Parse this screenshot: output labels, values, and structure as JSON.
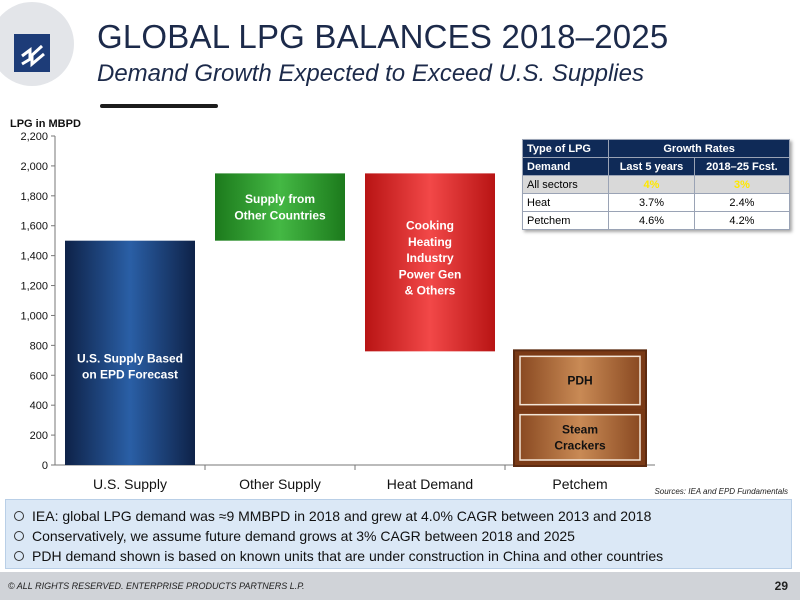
{
  "slide": {
    "title": "GLOBAL LPG BALANCES 2018–2025",
    "subtitle": "Demand Growth Expected to Exceed U.S. Supplies",
    "sources": "Sources:  IEA and EPD Fundamentals",
    "footer_text": "© ALL RIGHTS RESERVED. ENTERPRISE PRODUCTS PARTNERS L.P.",
    "page_number": "29"
  },
  "colors": {
    "title_navy": "#1c2a4a",
    "us_supply_blue": "#1f4a86",
    "other_supply_green": "#2f9a2f",
    "heat_demand_red": "#e02a2a",
    "petchem_brown": "#a65b2c",
    "notes_bg": "#dbe8f6"
  },
  "chart_data": {
    "type": "bar",
    "subtype": "waterfall",
    "ylabel": "LPG in MBPD",
    "ylim": [
      0,
      2200
    ],
    "y_ticks": [
      "0",
      "200",
      "400",
      "600",
      "800",
      "1,000",
      "1,200",
      "1,400",
      "1,600",
      "1,800",
      "2,000",
      "2,200"
    ],
    "categories": [
      "U.S. Supply",
      "Other Supply",
      "Heat Demand",
      "Petchem"
    ],
    "bars": [
      {
        "category": "U.S. Supply",
        "base": 0,
        "top": 1500,
        "value": 1500,
        "label": [
          "U.S. Supply Based",
          "on EPD Forecast"
        ]
      },
      {
        "category": "Other Supply",
        "base": 1500,
        "top": 1950,
        "value": 450,
        "label": [
          "Supply from",
          "Other Countries"
        ]
      },
      {
        "category": "Heat Demand",
        "base": 760,
        "top": 1950,
        "value": 1190,
        "label": [
          "Cooking",
          "Heating",
          "Industry",
          "Power Gen",
          "& Others"
        ]
      },
      {
        "category": "Petchem",
        "base": 0,
        "top": 760,
        "value": 760,
        "segments": [
          {
            "name": "Steam Crackers",
            "base": 0,
            "top": 370,
            "label": [
              "Steam",
              "Crackers"
            ]
          },
          {
            "name": "PDH",
            "base": 370,
            "top": 760,
            "label": [
              "PDH"
            ]
          }
        ]
      }
    ]
  },
  "growth_table": {
    "header1": [
      "Type of LPG",
      "Growth Rates"
    ],
    "header2": [
      "Demand",
      "Last 5 years",
      "2018–25 Fcst."
    ],
    "rows": [
      {
        "label": "All sectors",
        "last5": "4%",
        "fcst": "3%"
      },
      {
        "label": "Heat",
        "last5": "3.7%",
        "fcst": "2.4%"
      },
      {
        "label": "Petchem",
        "last5": "4.6%",
        "fcst": "4.2%"
      }
    ]
  },
  "notes": [
    "IEA:  global LPG demand was ≈9 MMBPD in 2018 and grew at 4.0% CAGR between 2013 and 2018",
    "Conservatively, we assume future demand grows at 3% CAGR between 2018 and 2025",
    "PDH demand shown is based on known units that are under construction in China and other countries"
  ]
}
